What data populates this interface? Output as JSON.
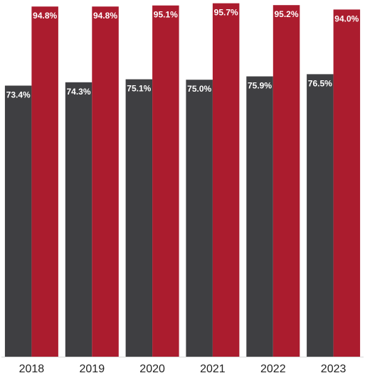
{
  "chart_data": {
    "type": "bar",
    "categories": [
      "2018",
      "2019",
      "2020",
      "2021",
      "2022",
      "2023"
    ],
    "series": [
      {
        "values": [
          73.4,
          74.3,
          75.1,
          75.0,
          75.9,
          76.5
        ],
        "labels": [
          "73.4%",
          "74.3%",
          "75.1%",
          "75.0%",
          "75.9%",
          "76.5%"
        ],
        "color": "#3f3f42"
      },
      {
        "values": [
          94.8,
          94.8,
          95.1,
          95.7,
          95.2,
          94.0
        ],
        "labels": [
          "94.8%",
          "94.8%",
          "95.1%",
          "95.7%",
          "95.2%",
          "94.0%"
        ],
        "color": "#ab1c2e"
      }
    ],
    "ylim": [
      0,
      100
    ],
    "grid": false,
    "title": "",
    "xlabel": "",
    "ylabel": ""
  }
}
